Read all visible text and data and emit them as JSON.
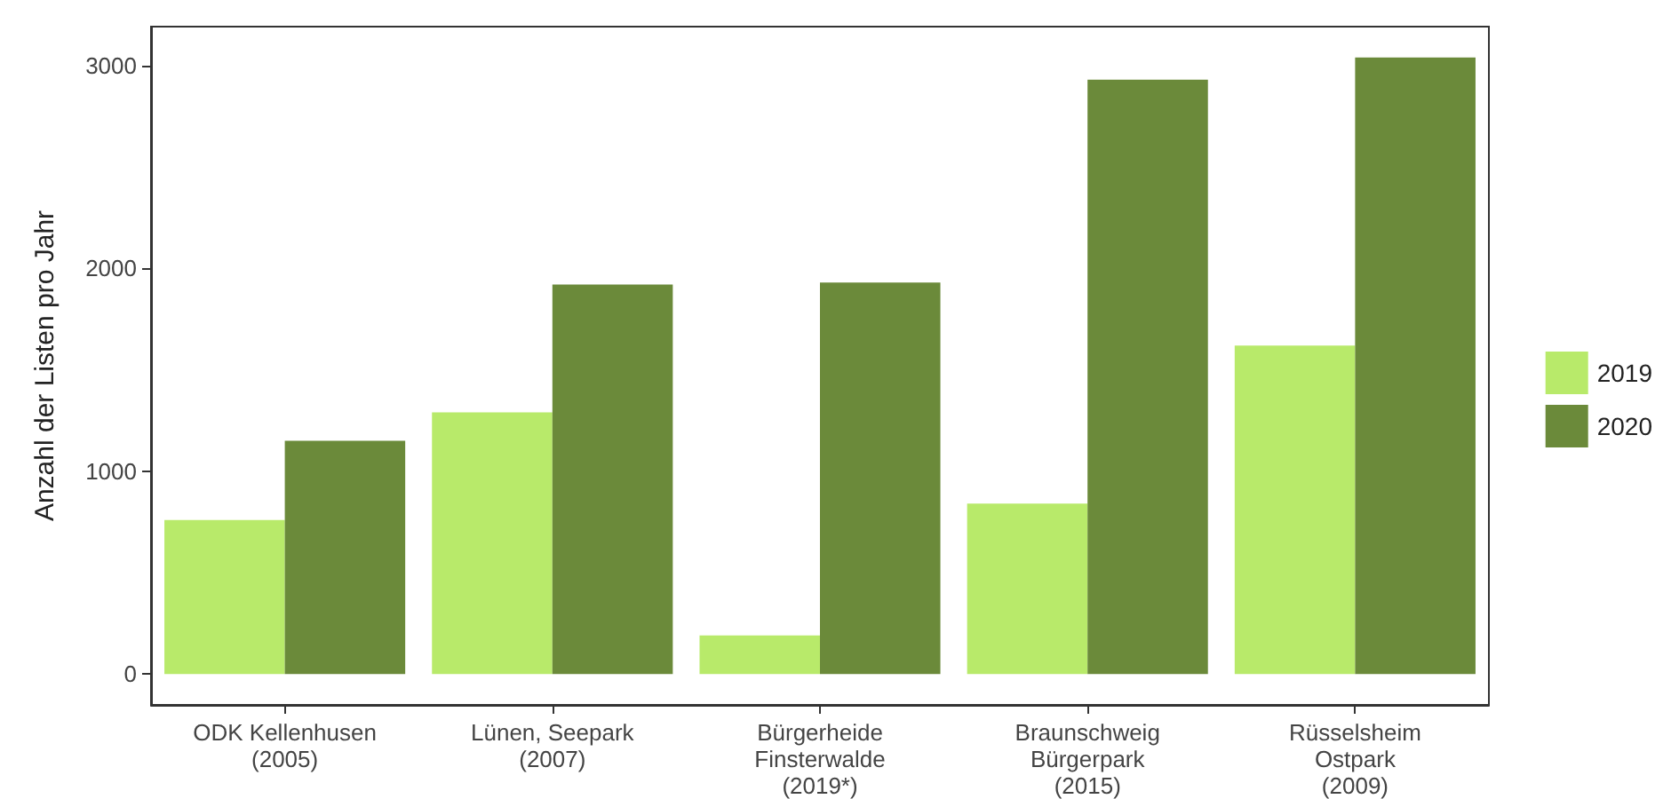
{
  "chart_data": {
    "type": "bar",
    "ylabel": "Anzahl der Listen pro Jahr",
    "categories": [
      "ODK Kellenhusen\n(2005)",
      "Lünen, Seepark\n(2007)",
      "Bürgerheide\nFinsterwalde\n(2019*)",
      "Braunschweig\nBürgerpark\n(2015)",
      "Rüsselsheim\nOstpark\n(2009)"
    ],
    "series": [
      {
        "name": "2019",
        "color": "#b8ea6a",
        "values": [
          760,
          1290,
          190,
          840,
          1620
        ]
      },
      {
        "name": "2020",
        "color": "#6b8a3a",
        "values": [
          1150,
          1920,
          1930,
          2930,
          3040
        ]
      }
    ],
    "ylim": [
      -152,
      3192
    ],
    "yticks": [
      0,
      1000,
      2000,
      3000
    ],
    "grid": false,
    "legend": "right"
  }
}
